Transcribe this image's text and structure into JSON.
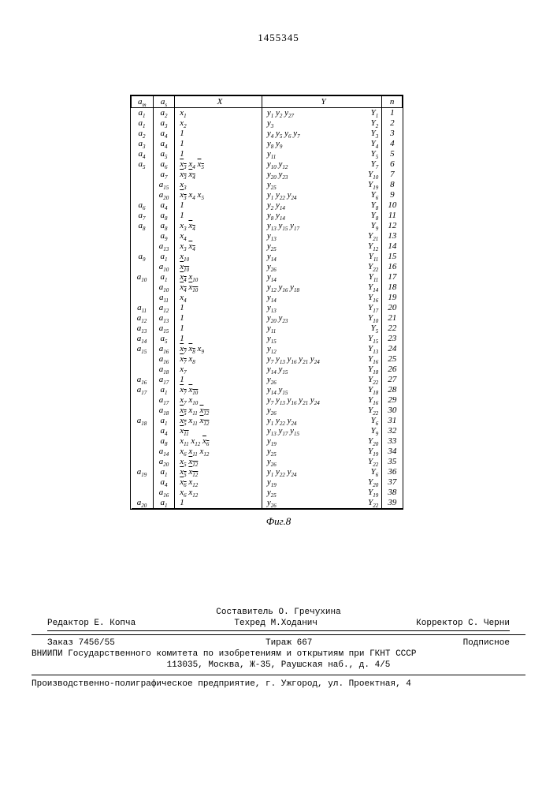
{
  "page_number": "1455345",
  "fig_label": "Фиг.8",
  "headers": {
    "am": "a_m",
    "as": "a_s",
    "x": "X",
    "y": "Y",
    "n": "n"
  },
  "rows": [
    {
      "am": "a₁",
      "as": "a₂",
      "x": "x₁",
      "y": "y₁ y₂ y₂₇",
      "YY": "Y₁",
      "n": "1"
    },
    {
      "am": "a₁",
      "as": "a₃",
      "x": "x₂",
      "y": "y₃",
      "YY": "Y₂",
      "n": "2"
    },
    {
      "am": "a₂",
      "as": "a₄",
      "x": "1",
      "y": "y₄ y₅ y₆ y₇",
      "YY": "Y₃",
      "n": "3"
    },
    {
      "am": "a₃",
      "as": "a₄",
      "x": "1",
      "y": "y₈ y₉",
      "YY": "Y₄",
      "n": "4"
    },
    {
      "am": "a₄",
      "as": "a₅",
      "x": "1",
      "y": "y₁₁",
      "YY": "Y₅",
      "n": "5"
    },
    {
      "am": "a₅",
      "as": "a₆",
      "x": "x̄₃ x₄ x̄₅",
      "y": "y₁₀ y₁₂",
      "YY": "Y₇",
      "n": "6"
    },
    {
      "am": "",
      "as": "a₇",
      "x": "x̄₃ x̄₄",
      "y": "y₂₀ y₂₃",
      "YY": "Y₁₀",
      "n": "7"
    },
    {
      "am": "",
      "as": "a₁₅",
      "x": "x₃",
      "y": "y₂₅",
      "YY": "Y₁₉",
      "n": "8"
    },
    {
      "am": "",
      "as": "a₂₀",
      "x": "x̄₃ x₄ x₅",
      "y": "y₁ y₂₂ y₂₄",
      "YY": "Y₆",
      "n": "9"
    },
    {
      "am": "a₆",
      "as": "a₄",
      "x": "1",
      "y": "y₂ y₁₄",
      "YY": "Y₈",
      "n": "10"
    },
    {
      "am": "a₇",
      "as": "a₈",
      "x": "1",
      "y": "y₈ y₁₄",
      "YY": "Y₈",
      "n": "11"
    },
    {
      "am": "a₈",
      "as": "a₈",
      "x": "x₃ x̄₄",
      "y": "y₁₃ y₁₅ y₁₇",
      "YY": "Y₉",
      "n": "12"
    },
    {
      "am": "",
      "as": "a₉",
      "x": "x₄",
      "y": "y₁₃",
      "YY": "Y₂₁",
      "n": "13"
    },
    {
      "am": "",
      "as": "a₁₃",
      "x": "x₃ x̄₄",
      "y": "y₂₅",
      "YY": "Y₁₂",
      "n": "14"
    },
    {
      "am": "a₉",
      "as": "a₁",
      "x": "x₁₀",
      "y": "y₁₄",
      "YY": "Y₁₁",
      "n": "15"
    },
    {
      "am": "",
      "as": "a₁₀",
      "x": "x̄₁₀",
      "y": "y₂₆",
      "YY": "Y₂₂",
      "n": "16"
    },
    {
      "am": "a₁₀",
      "as": "a₁",
      "x": "x̄₄ x₁₀",
      "y": "y₁₄",
      "YY": "Y₁₁",
      "n": "17"
    },
    {
      "am": "",
      "as": "a₁₀",
      "x": "x̄₄ x̄₁₀",
      "y": "y₁₂ y₁₆ y₁₈",
      "YY": "Y₁₄",
      "n": "18"
    },
    {
      "am": "",
      "as": "a₁₁",
      "x": "x₄",
      "y": "y₁₄",
      "YY": "Y₁₆",
      "n": "19"
    },
    {
      "am": "a₁₁",
      "as": "a₁₂",
      "x": "1",
      "y": "y₁₃",
      "YY": "Y₁₇",
      "n": "20"
    },
    {
      "am": "a₁₂",
      "as": "a₁₃",
      "x": "1",
      "y": "y₂₀ y₂₃",
      "YY": "Y₁₀",
      "n": "21"
    },
    {
      "am": "a₁₃",
      "as": "a₁₅",
      "x": "1",
      "y": "y₁₁",
      "YY": "Y₅",
      "n": "22"
    },
    {
      "am": "a₁₄",
      "as": "a₅",
      "x": "1",
      "y": "y₁₅",
      "YY": "Y₁₅",
      "n": "23"
    },
    {
      "am": "a₁₅",
      "as": "a₁₆",
      "x": "x̄₇ x̄₈ x₉",
      "y": "y₁₂",
      "YY": "Y₁₃",
      "n": "24"
    },
    {
      "am": "",
      "as": "a₁₆",
      "x": "x̄₇ x₈",
      "y": "y₇ y₁₃ y₁₆ y₂₁ y₂₄",
      "YY": "Y₁₆",
      "n": "25"
    },
    {
      "am": "",
      "as": "a₁₈",
      "x": "x₇",
      "y": "y₁₄ y₁₅",
      "YY": "Y₁₈",
      "n": "26"
    },
    {
      "am": "a₁₆",
      "as": "a₁₇",
      "x": "1",
      "y": "y₂₆",
      "YY": "Y₂₂",
      "n": "27"
    },
    {
      "am": "a₁₇",
      "as": "a₁",
      "x": "x̄₇ x̄₁₀",
      "y": "y₁₄ y₁₅",
      "YY": "Y₁₈",
      "n": "28"
    },
    {
      "am": "",
      "as": "a₁₇",
      "x": "x₇ x₁₀",
      "y": "y₇ y₁₃ y₁₆ y₂₁ y₂₄",
      "YY": "Y₁₆",
      "n": "29"
    },
    {
      "am": "",
      "as": "a₁₈",
      "x": "x̄₅ x₁₁ x̄₁₂",
      "y": "y₂₆",
      "YY": "Y₂₂",
      "n": "30"
    },
    {
      "am": "a₁₈",
      "as": "a₁",
      "x": "x̄₅ x₁₁ x̄₁₂",
      "y": "y₁ y₂₂ y₂₄",
      "YY": "Y₆",
      "n": "31"
    },
    {
      "am": "",
      "as": "a₄",
      "x": "x̄₁₁",
      "y": "y₁₃ y₁₇ y₁₅",
      "YY": "Y₉",
      "n": "32"
    },
    {
      "am": "",
      "as": "a₈",
      "x": "x₁₁ x₁₂ x̄₆",
      "y": "y₁₉",
      "YY": "Y₂₀",
      "n": "33"
    },
    {
      "am": "",
      "as": "a₁₄",
      "x": "x₆ x₁₁ x₁₂",
      "y": "y₂₅",
      "YY": "Y₁₉",
      "n": "34"
    },
    {
      "am": "",
      "as": "a₂₀",
      "x": "x₅ x̄₁₂",
      "y": "y₂₆",
      "YY": "Y₂₂",
      "n": "35"
    },
    {
      "am": "a₁₉",
      "as": "a₁",
      "x": "x̄₅ x̄₁₂",
      "y": "y₁ y₂₂ y₂₄",
      "YY": "Y₆",
      "n": "36"
    },
    {
      "am": "",
      "as": "a₄",
      "x": "x̄₆ x₁₂",
      "y": "y₁₉",
      "YY": "Y₂₀",
      "n": "37"
    },
    {
      "am": "",
      "as": "a₁₆",
      "x": "x₆ x₁₂",
      "y": "y₂₅",
      "YY": "Y₁₉",
      "n": "38"
    },
    {
      "am": "a₂₀",
      "as": "a₁",
      "x": "1",
      "y": "y₂₆",
      "YY": "Y₂₂",
      "n": "39"
    }
  ],
  "credits": {
    "compiler": "Составитель О. Гречухина",
    "editor": "Редактор Е. Копча",
    "techred": "Техред М.Ходанич",
    "corrector": "Корректор С. Черни"
  },
  "order": {
    "num": "Заказ 7456/55",
    "tir": "Тираж 667",
    "sub": "Подписное"
  },
  "addr1": "ВНИИПИ Государственного комитета по изобретениям и открытиям при ГКНТ СССР",
  "addr2": "113035, Москва, Ж-35, Раушская наб., д. 4/5",
  "prod": "Производственно-полиграфическое предприятие, г. Ужгород, ул. Проектная, 4"
}
